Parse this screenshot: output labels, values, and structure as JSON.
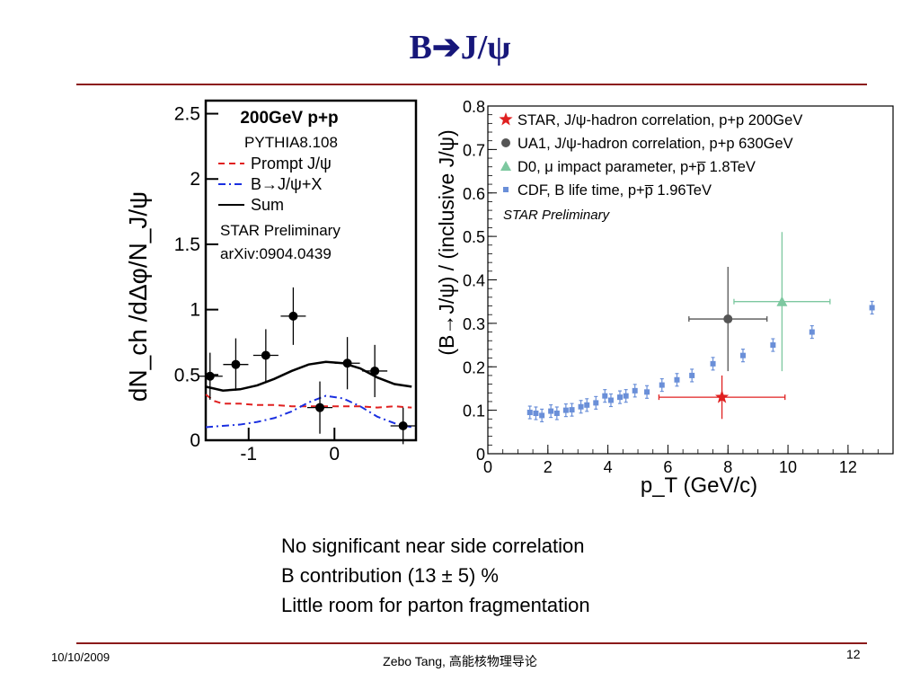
{
  "slide": {
    "title": "B➔J/ψ",
    "bullets": [
      "No significant near side correlation",
      "B contribution (13 ± 5) %",
      "Little room for parton fragmentation"
    ],
    "footer_date": "10/10/2009",
    "footer_author": "Zebo Tang, 高能核物理导论",
    "page_number": "12",
    "accent_color": "#17177a",
    "rule_color": "#8b1a1a"
  },
  "chart_data": [
    {
      "type": "line",
      "ylabel": "dN_ch /dΔφ/N_J/ψ",
      "xlim": [
        -1.5,
        0.95
      ],
      "ylim": [
        0,
        2.6
      ],
      "y_ticks": [
        "0",
        "0.5",
        "1",
        "1.5",
        "2",
        "2.5"
      ],
      "x_ticks": [
        "-1",
        "0"
      ],
      "legend_title": "200GeV p+p",
      "legend_subtitle": "PYTHIA8.108",
      "legend": [
        {
          "name": "Prompt J/ψ",
          "color": "#e02020",
          "dash": "dashed"
        },
        {
          "name": "B→J/ψ+X",
          "color": "#1a2fe0",
          "dash": "dashdot"
        },
        {
          "name": "Sum",
          "color": "#000000",
          "dash": "solid"
        }
      ],
      "annotation_1": "STAR Preliminary",
      "annotation_2": "arXiv:0904.0439",
      "data_points": [
        {
          "x": -1.45,
          "y": 0.49,
          "yerr": 0.18
        },
        {
          "x": -1.15,
          "y": 0.58,
          "yerr": 0.2
        },
        {
          "x": -0.8,
          "y": 0.65,
          "yerr": 0.2
        },
        {
          "x": -0.48,
          "y": 0.95,
          "yerr": 0.22
        },
        {
          "x": -0.17,
          "y": 0.25,
          "yerr": 0.2
        },
        {
          "x": 0.15,
          "y": 0.59,
          "yerr": 0.2
        },
        {
          "x": 0.47,
          "y": 0.53,
          "yerr": 0.2
        },
        {
          "x": 0.8,
          "y": 0.11,
          "yerr": 0.14
        }
      ],
      "series": [
        {
          "name": "Sum",
          "x": [
            -1.5,
            -1.3,
            -1.1,
            -0.9,
            -0.7,
            -0.5,
            -0.3,
            -0.1,
            0.1,
            0.3,
            0.5,
            0.7,
            0.9
          ],
          "values": [
            0.41,
            0.38,
            0.39,
            0.42,
            0.47,
            0.53,
            0.58,
            0.6,
            0.59,
            0.55,
            0.48,
            0.43,
            0.41
          ]
        },
        {
          "name": "Prompt J/ψ",
          "x": [
            -1.5,
            -1.4,
            -1.3,
            -1.1,
            -0.9,
            -0.7,
            -0.5,
            -0.3,
            -0.1,
            0.1,
            0.3,
            0.5,
            0.7,
            0.9
          ],
          "values": [
            0.35,
            0.3,
            0.28,
            0.28,
            0.27,
            0.27,
            0.26,
            0.26,
            0.26,
            0.26,
            0.26,
            0.25,
            0.26,
            0.25
          ]
        },
        {
          "name": "B→J/ψ+X",
          "x": [
            -1.5,
            -1.3,
            -1.1,
            -0.9,
            -0.7,
            -0.5,
            -0.3,
            -0.1,
            0.1,
            0.3,
            0.5,
            0.7,
            0.9
          ],
          "values": [
            0.1,
            0.11,
            0.12,
            0.14,
            0.17,
            0.22,
            0.29,
            0.34,
            0.32,
            0.26,
            0.18,
            0.13,
            0.1
          ]
        }
      ]
    },
    {
      "type": "scatter",
      "xlabel": "p_T (GeV/c)",
      "ylabel": "(B→J/ψ) / (inclusive J/ψ)",
      "xlim": [
        0,
        13.5
      ],
      "ylim": [
        0,
        0.8
      ],
      "x_ticks": [
        "0",
        "2",
        "4",
        "6",
        "8",
        "10",
        "12"
      ],
      "y_ticks": [
        "0",
        "0.1",
        "0.2",
        "0.3",
        "0.4",
        "0.5",
        "0.6",
        "0.7",
        "0.8"
      ],
      "annotation": "STAR Preliminary",
      "series": [
        {
          "name": "STAR, J/ψ-hadron correlation, p+p 200GeV",
          "color": "#e02020",
          "marker": "star",
          "points": [
            {
              "x": 7.8,
              "y": 0.13,
              "xerr_low": 2.1,
              "xerr_high": 2.1,
              "yerr": 0.05
            }
          ]
        },
        {
          "name": "UA1, J/ψ-hadron correlation, p+p 630GeV",
          "color": "#555555",
          "marker": "circle",
          "points": [
            {
              "x": 8.0,
              "y": 0.31,
              "xerr_low": 1.3,
              "xerr_high": 1.3,
              "yerr": 0.12
            }
          ]
        },
        {
          "name": "D0, μ impact parameter, p+p̅ 1.8TeV",
          "color": "#7dc8a0",
          "marker": "triangle",
          "points": [
            {
              "x": 9.8,
              "y": 0.35,
              "xerr_low": 1.6,
              "xerr_high": 1.6,
              "yerr": 0.16
            }
          ]
        },
        {
          "name": "CDF, B life time, p+p̅ 1.96TeV",
          "color": "#6a8fd8",
          "marker": "square",
          "points": [
            {
              "x": 1.4,
              "y": 0.095
            },
            {
              "x": 1.6,
              "y": 0.093
            },
            {
              "x": 1.8,
              "y": 0.088
            },
            {
              "x": 2.1,
              "y": 0.098
            },
            {
              "x": 2.3,
              "y": 0.093
            },
            {
              "x": 2.6,
              "y": 0.1
            },
            {
              "x": 2.8,
              "y": 0.101
            },
            {
              "x": 3.1,
              "y": 0.108
            },
            {
              "x": 3.3,
              "y": 0.112
            },
            {
              "x": 3.6,
              "y": 0.117
            },
            {
              "x": 3.9,
              "y": 0.133
            },
            {
              "x": 4.1,
              "y": 0.123
            },
            {
              "x": 4.4,
              "y": 0.13
            },
            {
              "x": 4.6,
              "y": 0.133
            },
            {
              "x": 4.9,
              "y": 0.145
            },
            {
              "x": 5.3,
              "y": 0.142
            },
            {
              "x": 5.8,
              "y": 0.158
            },
            {
              "x": 6.3,
              "y": 0.17
            },
            {
              "x": 6.8,
              "y": 0.18
            },
            {
              "x": 7.5,
              "y": 0.207
            },
            {
              "x": 8.5,
              "y": 0.226
            },
            {
              "x": 9.5,
              "y": 0.25
            },
            {
              "x": 10.8,
              "y": 0.28
            },
            {
              "x": 12.8,
              "y": 0.336
            }
          ]
        }
      ]
    }
  ]
}
